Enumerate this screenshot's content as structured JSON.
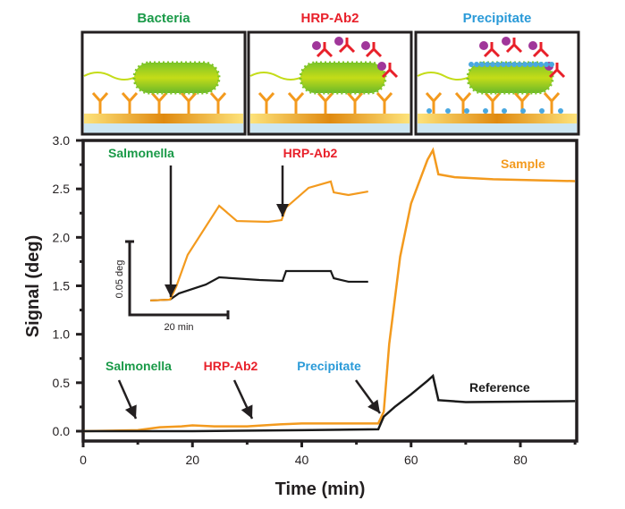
{
  "panels": [
    {
      "title": "Bacteria",
      "color": "#1a9a48"
    },
    {
      "title": "HRP-Ab2",
      "color": "#e8202a"
    },
    {
      "title": "Precipitate",
      "color": "#2a9ad8"
    }
  ],
  "chart_data": {
    "type": "line",
    "xlabel": "Time (min)",
    "ylabel": "Signal (deg)",
    "xlim": [
      0,
      90
    ],
    "ylim": [
      0,
      3.0
    ],
    "xticks": [
      "0",
      "20",
      "40",
      "60",
      "80"
    ],
    "xtick_values": [
      0,
      20,
      40,
      60,
      80
    ],
    "yticks": [
      "0.0",
      "0.5",
      "1.0",
      "1.5",
      "2.0",
      "2.5",
      "3.0"
    ],
    "ytick_values": [
      0,
      0.5,
      1.0,
      1.5,
      2.0,
      2.5,
      3.0
    ],
    "series": [
      {
        "name": "Sample",
        "color": "#f39a1e",
        "x": [
          0,
          10,
          14,
          18,
          20,
          24,
          30,
          36,
          40,
          45,
          50,
          54,
          55,
          56,
          58,
          60,
          62,
          63,
          64,
          65,
          68,
          75,
          90
        ],
        "y": [
          0,
          0.01,
          0.04,
          0.05,
          0.06,
          0.05,
          0.05,
          0.07,
          0.08,
          0.08,
          0.08,
          0.08,
          0.2,
          0.9,
          1.8,
          2.35,
          2.65,
          2.8,
          2.9,
          2.65,
          2.62,
          2.6,
          2.58
        ]
      },
      {
        "name": "Reference",
        "color": "#1a1a1a",
        "x": [
          0,
          20,
          40,
          54,
          55,
          57,
          60,
          63,
          64,
          65,
          70,
          90
        ],
        "y": [
          0,
          0,
          0.01,
          0.02,
          0.15,
          0.25,
          0.38,
          0.52,
          0.57,
          0.32,
          0.3,
          0.31
        ]
      }
    ],
    "annotations": [
      {
        "text": "Salmonella",
        "x": 10,
        "color": "#1a9a48"
      },
      {
        "text": "HRP-Ab2",
        "x": 30,
        "color": "#e8202a"
      },
      {
        "text": "Precipitate",
        "x": 54,
        "color": "#2a9ad8"
      }
    ],
    "inset": {
      "scale_x_label": "20 min",
      "scale_y_label": "0.05 deg",
      "annotations": [
        {
          "text": "Salmonella",
          "color": "#1a9a48"
        },
        {
          "text": "HRP-Ab2",
          "color": "#e8202a"
        }
      ],
      "series": [
        {
          "name": "Sample",
          "color": "#f39a1e",
          "x": [
            4.2,
            8.2,
            9.5,
            11.8,
            18.2,
            21.8,
            28.2,
            30.9,
            31.8,
            36.4,
            40.9,
            41.5,
            44.5,
            48.5
          ],
          "y": [
            0.0098,
            0.0104,
            0.0195,
            0.0409,
            0.0744,
            0.064,
            0.0634,
            0.0646,
            0.0732,
            0.0866,
            0.0909,
            0.0835,
            0.0817,
            0.0841
          ]
        },
        {
          "name": "Reference",
          "color": "#1a1a1a",
          "x": [
            4.2,
            8.2,
            10,
            15.5,
            18.2,
            26.4,
            31.1,
            31.8,
            40.9,
            41.5,
            44.5,
            48.5
          ],
          "y": [
            0.0098,
            0.0104,
            0.0146,
            0.0207,
            0.0256,
            0.0238,
            0.0232,
            0.0299,
            0.0299,
            0.025,
            0.0226,
            0.0226
          ]
        }
      ]
    }
  }
}
